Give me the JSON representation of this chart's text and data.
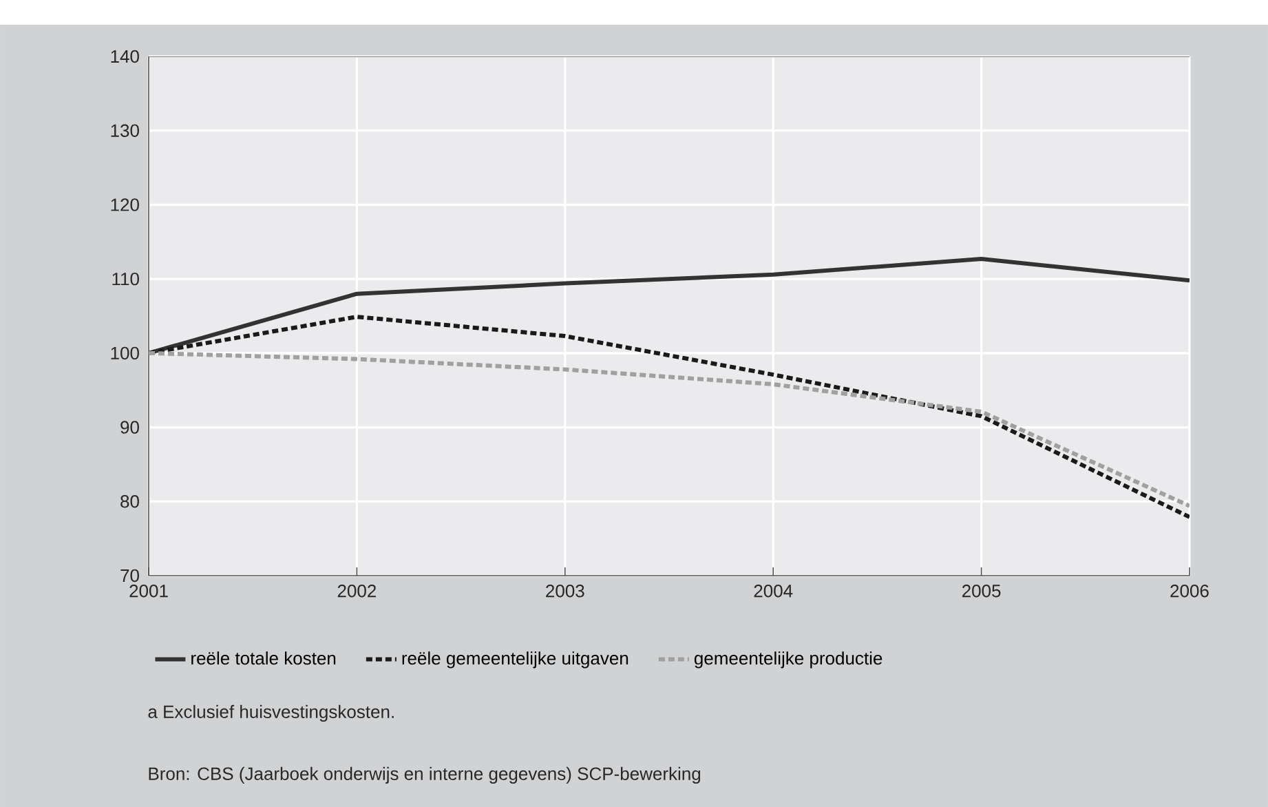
{
  "chart_data": {
    "type": "line",
    "categories": [
      "2001",
      "2002",
      "2003",
      "2004",
      "2005",
      "2006"
    ],
    "series": [
      {
        "name": "reële totale kosten",
        "color": "#333333",
        "line_style": "solid",
        "values": [
          100,
          108.0,
          109.4,
          110.6,
          112.7,
          109.8
        ]
      },
      {
        "name": "reële gemeentelijke uitgaven",
        "color": "#1a1a1a",
        "line_style": "dashed",
        "values": [
          100,
          104.9,
          102.3,
          97.1,
          91.5,
          77.9
        ]
      },
      {
        "name": "gemeentelijke productie",
        "color": "#a0a0a0",
        "line_style": "dashed",
        "values": [
          100,
          99.2,
          97.8,
          95.8,
          92.1,
          79.4
        ]
      }
    ],
    "ylim": [
      70,
      140
    ],
    "yticks": [
      70,
      80,
      90,
      100,
      110,
      120,
      130,
      140
    ],
    "grid": true,
    "legend": "bottom",
    "marker": "none",
    "annotations": [
      "a  Exclusief huisvestingskosten.",
      "Bron: CBS (Jaarboek onderwijs en interne gegevens) SCP-bewerking"
    ]
  }
}
